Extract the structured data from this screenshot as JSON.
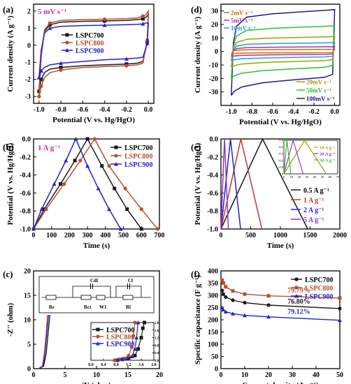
{
  "chart_data": [
    {
      "panel": "(a)",
      "type": "line",
      "xlabel": "Potential (V vs. Hg/HgO)",
      "ylabel": "Current density (A g⁻¹)",
      "xlim": [
        -1.05,
        0.05
      ],
      "ylim": [
        -3.4,
        2.4
      ],
      "xticks": [
        -1.0,
        -0.8,
        -0.6,
        -0.4,
        -0.2,
        0.0
      ],
      "xtick_labels": [
        "-1.0",
        "-0.8",
        "-0.6",
        "-0.4",
        "-0.2",
        "0.0"
      ],
      "yticks": [
        -3,
        -2,
        -1,
        0,
        1,
        2
      ],
      "annotation": "5 mV s⁻¹",
      "annotation_color": "#cc2f8f",
      "legend": "top-left",
      "series": [
        {
          "name": "LSPC700",
          "color": "#1a1a1a",
          "marker": "square",
          "x": [
            -1.0,
            -0.98,
            -0.95,
            -0.9,
            -0.8,
            -0.6,
            -0.4,
            -0.2,
            -0.1,
            -0.05,
            -0.02,
            0.0,
            -0.01,
            -0.05,
            -0.1,
            -0.2,
            -0.4,
            -0.6,
            -0.8,
            -0.9,
            -0.95,
            -0.98,
            -1.0
          ],
          "y": [
            -2.7,
            -0.6,
            0.8,
            1.2,
            1.35,
            1.4,
            1.42,
            1.45,
            1.5,
            1.55,
            1.65,
            1.8,
            0.2,
            -0.95,
            -1.05,
            -1.1,
            -1.15,
            -1.2,
            -1.3,
            -1.4,
            -1.6,
            -2.0,
            -2.7
          ]
        },
        {
          "name": "LSPC800",
          "color": "#b5502f",
          "marker": "circle",
          "x": [
            -1.0,
            -0.98,
            -0.95,
            -0.9,
            -0.8,
            -0.6,
            -0.4,
            -0.2,
            -0.1,
            -0.05,
            -0.02,
            0.0,
            -0.01,
            -0.05,
            -0.1,
            -0.2,
            -0.4,
            -0.6,
            -0.8,
            -0.9,
            -0.95,
            -0.98,
            -1.0
          ],
          "y": [
            -3.0,
            -0.7,
            0.9,
            1.3,
            1.45,
            1.5,
            1.52,
            1.55,
            1.6,
            1.7,
            1.8,
            2.0,
            0.3,
            -1.05,
            -1.15,
            -1.2,
            -1.25,
            -1.3,
            -1.45,
            -1.6,
            -1.9,
            -2.4,
            -3.0
          ]
        },
        {
          "name": "LSPC900",
          "color": "#2323c8",
          "marker": "triangle",
          "x": [
            -1.0,
            -0.98,
            -0.95,
            -0.9,
            -0.8,
            -0.6,
            -0.4,
            -0.2,
            -0.1,
            -0.05,
            -0.02,
            0.0,
            -0.01,
            -0.05,
            -0.1,
            -0.2,
            -0.4,
            -0.6,
            -0.8,
            -0.9,
            -0.95,
            -0.98,
            -1.0
          ],
          "y": [
            -1.9,
            -0.3,
            0.7,
            1.0,
            1.1,
            1.15,
            1.17,
            1.2,
            1.22,
            1.25,
            1.3,
            1.3,
            0.1,
            -0.7,
            -0.75,
            -0.8,
            -0.85,
            -0.95,
            -1.05,
            -1.15,
            -1.3,
            -1.5,
            -1.9
          ]
        }
      ]
    },
    {
      "panel": "(b)",
      "type": "line",
      "xlabel": "Time (s)",
      "ylabel": "Potential (V vs. Hg/HgO)",
      "xlim": [
        0,
        700
      ],
      "ylim": [
        -1.0,
        0.0
      ],
      "xticks": [
        0,
        100,
        200,
        300,
        400,
        500,
        600,
        700
      ],
      "yticks": [
        -1.0,
        -0.8,
        -0.6,
        -0.4,
        -0.2,
        0.0
      ],
      "ytick_labels": [
        "-1.0",
        "-0.8",
        "-0.6",
        "-0.4",
        "-0.2",
        "0.0"
      ],
      "annotation": "1 A g⁻¹",
      "annotation_color": "#cc2f8f",
      "legend": "top-right",
      "series": [
        {
          "name": "LSPC700",
          "color": "#1a1a1a",
          "marker": "square",
          "x": [
            0,
            60,
            150,
            230,
            300,
            380,
            450,
            520,
            600
          ],
          "y": [
            -1.0,
            -0.78,
            -0.5,
            -0.24,
            0.0,
            -0.3,
            -0.55,
            -0.78,
            -1.0
          ]
        },
        {
          "name": "LSPC800",
          "color": "#b5502f",
          "marker": "circle",
          "x": [
            0,
            70,
            170,
            260,
            340,
            420,
            510,
            600,
            690
          ],
          "y": [
            -1.0,
            -0.78,
            -0.5,
            -0.24,
            0.0,
            -0.3,
            -0.55,
            -0.78,
            -1.0
          ]
        },
        {
          "name": "LSPC900",
          "color": "#2323c8",
          "marker": "triangle",
          "x": [
            0,
            45,
            115,
            180,
            235,
            300,
            360,
            420,
            485
          ],
          "y": [
            -1.0,
            -0.78,
            -0.5,
            -0.24,
            0.0,
            -0.3,
            -0.55,
            -0.78,
            -1.0
          ]
        }
      ]
    },
    {
      "panel": "(c)",
      "type": "line",
      "xlabel": "Z' (ohm)",
      "ylabel": "-Z'' (ohm)",
      "xlim": [
        0,
        20
      ],
      "ylim": [
        0,
        20
      ],
      "xticks": [
        0,
        5,
        10,
        15,
        20
      ],
      "yticks": [
        0,
        5,
        10,
        15,
        20
      ],
      "legend": "inset",
      "circuit_labels": [
        "Rs",
        "Rct",
        "W1",
        "Cdl",
        "Rl",
        "Cl"
      ],
      "inset": {
        "xlim": [
          0.0,
          2.0
        ],
        "ylim": [
          0.0,
          2.0
        ],
        "xticks": [
          0.0,
          0.4,
          0.8,
          1.2,
          1.6,
          2.0
        ],
        "xtick_labels": [
          "0.0",
          "0.4",
          "0.8",
          "1.2",
          "1.6",
          "2.0"
        ],
        "yticks": [
          0.0,
          0.4,
          0.8,
          1.2,
          1.6,
          2.0
        ],
        "ytick_labels": [
          "0.0",
          "0.4",
          "0.8",
          "1.2",
          "1.6",
          "2.0"
        ]
      },
      "series": [
        {
          "name": "LSPC700",
          "color": "#1a1a1a",
          "marker": "square",
          "x": [
            0.8,
            1.0,
            1.2,
            1.4,
            1.5,
            1.6,
            1.65,
            1.7
          ],
          "y": [
            0.0,
            0.05,
            0.12,
            0.25,
            0.6,
            1.2,
            1.7,
            2.0
          ]
        },
        {
          "name": "LSPC800",
          "color": "#b5502f",
          "marker": "circle",
          "x": [
            0.75,
            0.9,
            1.05,
            1.2,
            1.3,
            1.35,
            1.4
          ],
          "y": [
            0.0,
            0.05,
            0.1,
            0.25,
            0.7,
            1.3,
            2.0
          ]
        },
        {
          "name": "LSPC900",
          "color": "#2323c8",
          "marker": "triangle",
          "x": [
            0.85,
            1.0,
            1.15,
            1.3,
            1.4,
            1.45,
            1.5
          ],
          "y": [
            0.0,
            0.05,
            0.1,
            0.2,
            0.6,
            1.2,
            2.0
          ]
        }
      ],
      "main_series": [
        {
          "name": "LSPC700",
          "x": [
            0.8,
            1.6,
            2.0,
            2.3,
            2.6
          ],
          "y": [
            0,
            0.5,
            3,
            7,
            11
          ]
        },
        {
          "name": "LSPC800",
          "x": [
            0.75,
            1.4,
            1.7,
            2.0,
            2.2
          ],
          "y": [
            0,
            0.5,
            3,
            7,
            11
          ]
        },
        {
          "name": "LSPC900",
          "x": [
            0.85,
            1.5,
            1.8,
            2.1,
            2.4
          ],
          "y": [
            0,
            0.5,
            3,
            7,
            11
          ]
        }
      ]
    },
    {
      "panel": "(d)",
      "type": "line",
      "xlabel": "Potential (V vs. Hg/HgO)",
      "ylabel": "Current density (A g⁻¹)",
      "xlim": [
        -1.1,
        0.05
      ],
      "ylim": [
        -40,
        35
      ],
      "xticks": [
        -1.0,
        -0.8,
        -0.6,
        -0.4,
        -0.2,
        0.0
      ],
      "xtick_labels": [
        "-1.0",
        "-0.8",
        "-0.6",
        "-0.4",
        "-0.2",
        "0.0"
      ],
      "yticks": [
        -30,
        -20,
        -10,
        0,
        10,
        20,
        30
      ],
      "legend": "top-left and bottom-right",
      "series": [
        {
          "name": "2mV s⁻¹",
          "color": "#c87000",
          "scale": 1.5
        },
        {
          "name": "5mV s⁻¹",
          "color": "#b030b0",
          "scale": 3.5
        },
        {
          "name": "10mV s⁻¹",
          "color": "#20a0e0",
          "scale": 6.5
        },
        {
          "name": "20mV s⁻¹",
          "color": "#a0a000",
          "scale": 11
        },
        {
          "name": "50mV s⁻¹",
          "color": "#30c030",
          "scale": 19
        },
        {
          "name": "100mV s⁻¹",
          "color": "#1a1a90",
          "scale": 31
        }
      ]
    },
    {
      "panel": "(e)",
      "type": "line",
      "xlabel": "Time (s)",
      "ylabel": "Potential (V vs. Hg/HgO)",
      "xlim": [
        0,
        2000
      ],
      "ylim": [
        -1.0,
        0.0
      ],
      "xticks": [
        0,
        500,
        1000,
        1500,
        2000
      ],
      "yticks": [
        -1.0,
        -0.8,
        -0.6,
        -0.4,
        -0.2,
        0.0
      ],
      "ytick_labels": [
        "-1.0",
        "-0.8",
        "-0.6",
        "-0.4",
        "-0.2",
        "0.0"
      ],
      "legend": "bottom-right",
      "series": [
        {
          "name": "0.5 A g⁻¹",
          "color": "#1a1a1a",
          "x": [
            0,
            700,
            1460
          ],
          "y": [
            -1.0,
            0.0,
            -1.0
          ]
        },
        {
          "name": "1 A g⁻¹",
          "color": "#c0392b",
          "x": [
            0,
            335,
            690
          ],
          "y": [
            -1.0,
            0.0,
            -1.0
          ]
        },
        {
          "name": "2 A g⁻¹",
          "color": "#2323c8",
          "x": [
            0,
            160,
            330
          ],
          "y": [
            -1.0,
            0.0,
            -1.0
          ]
        },
        {
          "name": "5 A g⁻¹",
          "color": "#9b30c0",
          "x": [
            0,
            60,
            125
          ],
          "y": [
            -1.0,
            0.0,
            -1.0
          ]
        }
      ],
      "inset": {
        "xlim": [
          0,
          70
        ],
        "ylim": [
          -1.0,
          0.0
        ],
        "xticks": [
          0,
          10,
          20,
          30,
          40,
          50,
          60,
          70
        ],
        "yticks": [
          -1.0,
          -0.8,
          -0.6,
          -0.4,
          -0.2,
          0.0
        ],
        "ytick_labels": [
          "-1.0",
          "-0.8",
          "-0.6",
          "-0.4",
          "-0.2",
          "0.0"
        ],
        "series": [
          {
            "name": "10 A g⁻¹",
            "color": "#a0a000",
            "x": [
              0,
              27,
              55
            ],
            "y": [
              -1.0,
              0.0,
              -1.0
            ]
          },
          {
            "name": "20 A g⁻¹",
            "color": "#9b30c0",
            "x": [
              0,
              12,
              25
            ],
            "y": [
              -1.0,
              0.0,
              -1.0
            ]
          },
          {
            "name": "50 A g⁻¹",
            "color": "#30c030",
            "x": [
              0,
              4,
              9
            ],
            "y": [
              -1.0,
              0.0,
              -1.0
            ]
          }
        ]
      }
    },
    {
      "panel": "(f)",
      "type": "line",
      "xlabel": "Current density (A g⁻¹)",
      "ylabel": "Specific capacitance (F g⁻¹)",
      "xlim": [
        0,
        50
      ],
      "ylim": [
        0,
        400
      ],
      "xticks": [
        0,
        10,
        20,
        30,
        40,
        50
      ],
      "yticks": [
        0,
        50,
        100,
        150,
        200,
        250,
        300,
        350,
        400
      ],
      "legend": "top-right",
      "annotations": [
        {
          "text": "79.79%",
          "color": "#c05040",
          "x": 28,
          "y": 312
        },
        {
          "text": "76.80%",
          "color": "#1a1a1a",
          "x": 28,
          "y": 266
        },
        {
          "text": "79.12%",
          "color": "#2323c8",
          "x": 28,
          "y": 225
        }
      ],
      "series": [
        {
          "name": "LSPC700",
          "color": "#1a1a1a",
          "marker": "circle",
          "x": [
            0.5,
            1,
            2,
            5,
            10,
            20,
            50
          ],
          "y": [
            320,
            305,
            293,
            280,
            270,
            260,
            246
          ]
        },
        {
          "name": "LSPC800",
          "color": "#b5502f",
          "marker": "square",
          "x": [
            0.5,
            1,
            2,
            5,
            10,
            20,
            50
          ],
          "y": [
            362,
            350,
            335,
            318,
            305,
            298,
            289
          ]
        },
        {
          "name": "LSPC900",
          "color": "#2323c8",
          "marker": "triangle",
          "x": [
            0.5,
            1,
            2,
            5,
            10,
            20,
            50
          ],
          "y": [
            250,
            241,
            233,
            225,
            218,
            212,
            198
          ]
        }
      ]
    }
  ]
}
